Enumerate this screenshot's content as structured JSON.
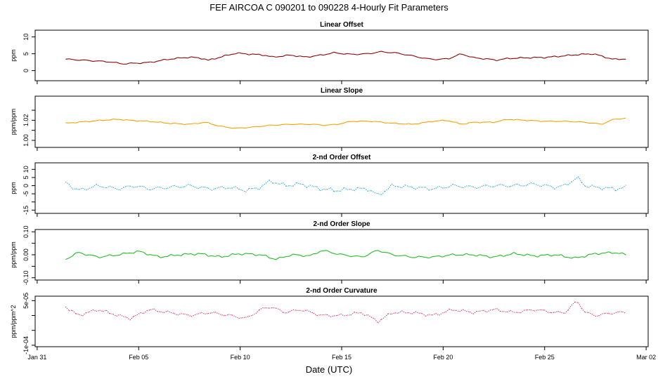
{
  "figure": {
    "title": "FEF   AIRCOA C   090201 to 090228   4-Hourly Fit Parameters",
    "xlabel": "Date (UTC)",
    "x_tick_labels": [
      "Jan 31",
      "Feb 05",
      "Feb 10",
      "Feb 15",
      "Feb 20",
      "Feb 25",
      "Mar 02"
    ],
    "x_tick_days": [
      0,
      5,
      10,
      15,
      20,
      25,
      30
    ],
    "x_range_days": [
      -0.1,
      30.1
    ],
    "x_unit_note": "days since Jan 31"
  },
  "chart_data": [
    {
      "type": "line",
      "title": "Linear Offset",
      "ylabel": "ppm",
      "ylim": [
        -3,
        12
      ],
      "y_ticks": [
        0,
        5,
        10
      ],
      "y_tick_labels": [
        "0",
        "5",
        "10"
      ],
      "color": "#8b0000",
      "style": "solid",
      "x_start": 1.4,
      "x_end": 29.0,
      "n": 166,
      "knots_x": [
        1.4,
        2.5,
        3.6,
        4.2,
        5.5,
        6.5,
        7.5,
        8.2,
        8.4,
        9.2,
        9.8,
        10.2,
        11.2,
        11.6,
        12.5,
        13.2,
        14.0,
        14.6,
        15.5,
        16.3,
        16.9,
        17.6,
        18.3,
        19.2,
        19.8,
        20.3,
        20.9,
        21.5,
        22.1,
        22.6,
        23.2,
        24.0,
        25.0,
        26.0,
        26.5,
        27.4,
        27.8,
        28.4,
        29.0
      ],
      "knots_y": [
        3.4,
        3.0,
        2.6,
        2.0,
        2.4,
        3.4,
        4.0,
        3.6,
        3.0,
        4.3,
        5.2,
        5.0,
        4.6,
        4.0,
        4.6,
        4.0,
        4.6,
        5.3,
        4.8,
        5.0,
        5.6,
        5.3,
        4.6,
        3.5,
        3.3,
        3.6,
        5.0,
        3.8,
        3.5,
        3.1,
        3.6,
        3.8,
        3.9,
        4.4,
        4.7,
        5.0,
        4.3,
        3.3,
        3.5
      ],
      "noise_amp": 0.25
    },
    {
      "type": "line",
      "title": "Linear Slope",
      "ylabel": "ppm/ppm",
      "ylim": [
        0.993,
        1.044
      ],
      "y_ticks": [
        1.0,
        1.01,
        1.02,
        1.03
      ],
      "y_tick_labels": [
        "1.00",
        "",
        "1.02",
        ""
      ],
      "color": "#f2a100",
      "style": "solid",
      "x_start": 1.4,
      "x_end": 29.0,
      "n": 166,
      "knots_x": [
        1.4,
        2.0,
        3.2,
        4.0,
        4.5,
        5.5,
        6.5,
        7.5,
        8.3,
        9.0,
        9.8,
        10.5,
        11.5,
        12.5,
        13.5,
        14.2,
        14.8,
        15.5,
        16.5,
        17.5,
        18.5,
        19.5,
        20.2,
        20.9,
        21.5,
        22.5,
        23.2,
        24.0,
        25.0,
        26.0,
        27.0,
        27.8,
        28.4,
        29.0
      ],
      "knots_y": [
        1.017,
        1.018,
        1.02,
        1.021,
        1.02,
        1.019,
        1.017,
        1.016,
        1.018,
        1.014,
        1.012,
        1.013,
        1.015,
        1.016,
        1.016,
        1.015,
        1.016,
        1.019,
        1.019,
        1.017,
        1.016,
        1.019,
        1.02,
        1.016,
        1.018,
        1.018,
        1.021,
        1.02,
        1.019,
        1.019,
        1.018,
        1.016,
        1.021,
        1.022
      ],
      "noise_amp": 0.0006
    },
    {
      "type": "line",
      "title": "2-nd Order Offset",
      "ylabel": "ppm",
      "ylim": [
        -17,
        14
      ],
      "y_ticks": [
        -15,
        -10,
        -5,
        0,
        5,
        10
      ],
      "y_tick_labels": [
        "-15",
        "",
        "-5",
        "0",
        "5",
        "10"
      ],
      "color": "#29a3d6",
      "style": "dotted",
      "x_start": 1.4,
      "x_end": 29.0,
      "n": 166,
      "knots_x": [
        1.4,
        2.0,
        3.0,
        4.0,
        4.8,
        5.5,
        6.5,
        7.5,
        8.5,
        9.5,
        10.3,
        11.0,
        11.5,
        12.2,
        13.0,
        14.0,
        14.8,
        15.5,
        16.3,
        16.8,
        17.5,
        18.5,
        19.5,
        20.5,
        21.5,
        22.5,
        23.5,
        24.5,
        25.5,
        26.0,
        26.6,
        27.0,
        27.5,
        28.5,
        29.0
      ],
      "knots_y": [
        2.0,
        -3.0,
        0.0,
        -2.0,
        0.0,
        -2.0,
        -1.0,
        0.0,
        -2.0,
        -1.0,
        -3.0,
        -1.0,
        3.0,
        0.0,
        1.0,
        -2.0,
        -3.0,
        -2.0,
        -2.0,
        -6.0,
        0.0,
        -1.0,
        -2.0,
        0.0,
        -1.0,
        0.0,
        0.0,
        1.0,
        -1.0,
        0.0,
        5.0,
        0.0,
        -1.0,
        -2.0,
        -1.0
      ],
      "noise_amp": 1.4
    },
    {
      "type": "line",
      "title": "2-nd Order Slope",
      "ylabel": "ppm/ppm",
      "ylim": [
        -0.11,
        0.11
      ],
      "y_ticks": [
        -0.1,
        -0.05,
        0.0,
        0.05,
        0.1
      ],
      "y_tick_labels": [
        "-0.10",
        "",
        "0.00",
        "",
        "0.10"
      ],
      "color": "#22bb22",
      "style": "solid",
      "x_start": 1.4,
      "x_end": 29.0,
      "n": 166,
      "knots_x": [
        1.4,
        2.0,
        3.0,
        4.0,
        5.0,
        6.0,
        7.0,
        8.0,
        9.0,
        10.0,
        11.0,
        11.8,
        12.5,
        13.5,
        14.0,
        15.0,
        16.0,
        16.8,
        17.5,
        18.5,
        19.5,
        20.5,
        21.5,
        22.5,
        23.5,
        24.5,
        25.5,
        26.5,
        27.5,
        28.5,
        29.0
      ],
      "knots_y": [
        -0.02,
        0.01,
        -0.01,
        0.0,
        0.015,
        -0.01,
        0.0,
        0.005,
        -0.01,
        0.005,
        0.0,
        -0.02,
        0.0,
        -0.005,
        0.02,
        0.0,
        -0.01,
        0.02,
        0.0,
        -0.01,
        -0.01,
        0.0,
        0.0,
        -0.01,
        0.005,
        -0.005,
        0.0,
        -0.015,
        0.005,
        0.01,
        0.0
      ],
      "noise_amp": 0.006
    },
    {
      "type": "line",
      "title": "2-nd Order Curvature",
      "ylabel": "ppm/ppm^2",
      "ylim": [
        -0.000105,
        6.5e-05
      ],
      "y_ticks": [
        -0.0001,
        -5e-05,
        0.0,
        5e-05
      ],
      "y_tick_labels": [
        "-1e-04",
        "",
        "",
        "5e-05"
      ],
      "color": "#e0306a",
      "style": "dotted",
      "x_start": 1.4,
      "x_end": 29.0,
      "n": 166,
      "knots_x": [
        1.4,
        2.0,
        3.0,
        4.0,
        4.6,
        5.5,
        6.5,
        7.5,
        8.5,
        9.5,
        10.3,
        11.0,
        11.5,
        12.2,
        13.0,
        14.0,
        15.0,
        16.0,
        16.8,
        17.5,
        18.5,
        19.5,
        20.5,
        21.5,
        22.5,
        23.5,
        24.5,
        25.5,
        26.0,
        26.6,
        27.0,
        27.5,
        28.5,
        29.0
      ],
      "knots_y": [
        3e-05,
        0.0,
        2e-05,
        0.0,
        -1e-05,
        2e-05,
        1e-05,
        0.0,
        1e-05,
        0.0,
        -1e-05,
        2e-05,
        3e-05,
        1e-05,
        2e-05,
        0.0,
        0.0,
        1e-05,
        -2e-05,
        1e-05,
        1e-05,
        0.0,
        2e-05,
        1e-05,
        2e-05,
        1e-05,
        2e-05,
        1e-05,
        1e-05,
        5e-05,
        1e-05,
        0.0,
        1e-05,
        1e-05
      ],
      "noise_amp": 6e-06
    }
  ]
}
